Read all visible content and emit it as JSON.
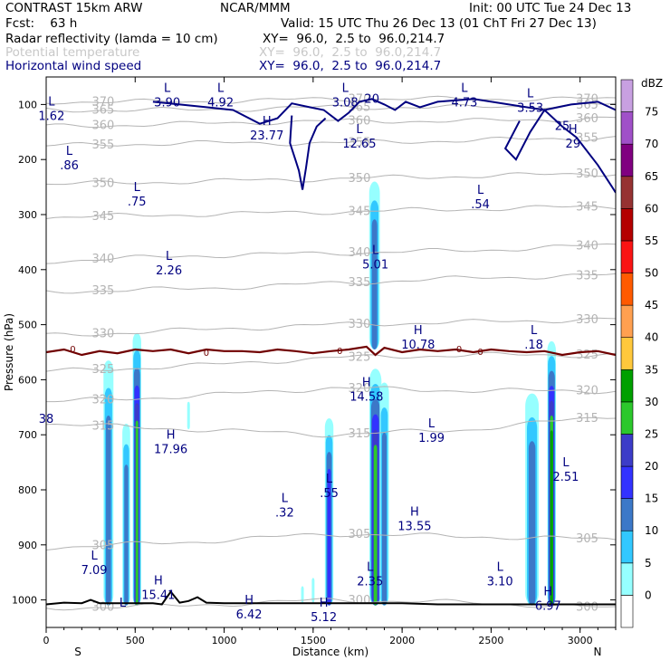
{
  "header": {
    "model": "CONTRAST 15km ARW",
    "org": "NCAR/MMM",
    "init": "Init: 00 UTC Tue 24 Dec 13",
    "fcst": "Fcst:    63 h",
    "valid": "Valid: 15 UTC Thu 26 Dec 13 (01 ChT Fri 27 Dec 13)",
    "line1_field": "Radar reflectivity (lamda = 10 cm)",
    "line1_xy": "XY=  96.0,  2.5 to  96.0,214.7",
    "line2_field": "Potential temperature",
    "line2_xy": "XY=  96.0,  2.5 to  96.0,214.7",
    "line3_field": "Horizontal wind speed",
    "line3_xy": "XY=  96.0,  2.5 to  96.0,214.7"
  },
  "colors": {
    "reflectivity": [
      "#96ffff",
      "#32c8ff",
      "#3c78c8",
      "#3232ff",
      "#3c3cc8",
      "#2cc82c",
      "#00a000",
      "#ffc83c",
      "#ffa050",
      "#ff5a00",
      "#fa1414",
      "#b40000",
      "#963232",
      "#800080",
      "#a050c8",
      "#c8a0e1"
    ],
    "theta": "#b4b4b4",
    "wind": "#000080",
    "freezing": "#700000",
    "terrain": "#000000"
  },
  "chart_data": {
    "type": "cross-section",
    "xlabel": "Distance (km)",
    "ylabel": "Pressure (hPa)",
    "xlim": [
      0,
      3200
    ],
    "ylim": [
      1050,
      50
    ],
    "x_ticks": [
      0,
      500,
      1000,
      1500,
      2000,
      2500,
      3000
    ],
    "y_ticks": [
      100,
      200,
      300,
      400,
      500,
      600,
      700,
      800,
      900,
      1000
    ],
    "x_end_labels": {
      "left": "S",
      "right": "N"
    },
    "colorbar": {
      "title": "dBZ",
      "levels": [
        0,
        5,
        10,
        15,
        20,
        25,
        30,
        35,
        40,
        45,
        50,
        55,
        60,
        65,
        70,
        75
      ]
    },
    "reflectivity_cores": [
      {
        "x": 350,
        "ptop": 565,
        "pbot": 1010,
        "hw": 28,
        "dbz": 18
      },
      {
        "x": 450,
        "ptop": 680,
        "pbot": 1010,
        "hw": 22,
        "dbz": 15
      },
      {
        "x": 510,
        "ptop": 515,
        "pbot": 1010,
        "hw": 24,
        "dbz": 32
      },
      {
        "x": 800,
        "ptop": 640,
        "pbot": 690,
        "hw": 6,
        "dbz": 5
      },
      {
        "x": 1440,
        "ptop": 975,
        "pbot": 1005,
        "hw": 6,
        "dbz": 5
      },
      {
        "x": 1500,
        "ptop": 960,
        "pbot": 1005,
        "hw": 6,
        "dbz": 5
      },
      {
        "x": 1590,
        "ptop": 670,
        "pbot": 1010,
        "hw": 24,
        "dbz": 22
      },
      {
        "x": 1845,
        "ptop": 240,
        "pbot": 545,
        "hw": 30,
        "dbz": 15
      },
      {
        "x": 1850,
        "ptop": 580,
        "pbot": 1010,
        "hw": 34,
        "dbz": 30
      },
      {
        "x": 1900,
        "ptop": 605,
        "pbot": 1010,
        "hw": 26,
        "dbz": 18
      },
      {
        "x": 2730,
        "ptop": 625,
        "pbot": 1010,
        "hw": 38,
        "dbz": 18
      },
      {
        "x": 2840,
        "ptop": 530,
        "pbot": 1010,
        "hw": 24,
        "dbz": 36
      }
    ],
    "theta_contours": [
      {
        "label": "300",
        "p": [
          1015,
          1010,
          1000,
          1005,
          1015
        ]
      },
      {
        "label": "305",
        "p": [
          905,
          895,
          880,
          885,
          890
        ]
      },
      {
        "label": "315",
        "p": [
          680,
          690,
          700,
          690,
          665
        ]
      },
      {
        "label": "320",
        "p": [
          640,
          630,
          615,
          620,
          620
        ]
      },
      {
        "label": "325",
        "p": [
          585,
          575,
          560,
          555,
          555
        ]
      },
      {
        "label": "330",
        "p": [
          520,
          510,
          500,
          495,
          490
        ]
      },
      {
        "label": "335",
        "p": [
          440,
          435,
          425,
          415,
          410
        ]
      },
      {
        "label": "340",
        "p": [
          385,
          375,
          370,
          365,
          355
        ]
      },
      {
        "label": "345",
        "p": [
          305,
          300,
          295,
          290,
          285
        ]
      },
      {
        "label": "350",
        "p": [
          245,
          240,
          235,
          230,
          225
        ]
      },
      {
        "label": "355",
        "p": [
          175,
          170,
          170,
          165,
          160
        ]
      },
      {
        "label": "360",
        "p": [
          140,
          135,
          130,
          130,
          125
        ]
      },
      {
        "label": "365",
        "p": [
          110,
          110,
          105,
          105,
          100
        ]
      },
      {
        "label": "370",
        "p": [
          95,
          95,
          90,
          90,
          90
        ]
      }
    ],
    "wind_contours": [
      {
        "label": "20",
        "pts": [
          [
            600,
            95
          ],
          [
            900,
            105
          ],
          [
            1050,
            110
          ],
          [
            1200,
            135
          ],
          [
            1300,
            125
          ],
          [
            1380,
            98
          ],
          [
            1480,
            105
          ],
          [
            1560,
            110
          ],
          [
            1640,
            130
          ],
          [
            1700,
            115
          ],
          [
            1760,
            95
          ],
          [
            1830,
            90
          ],
          [
            1900,
            100
          ],
          [
            1960,
            110
          ],
          [
            2020,
            95
          ],
          [
            2100,
            105
          ],
          [
            2200,
            95
          ],
          [
            2400,
            90
          ],
          [
            2800,
            110
          ],
          [
            2950,
            100
          ],
          [
            3100,
            95
          ],
          [
            3200,
            110
          ]
        ]
      },
      {
        "label": "25",
        "pts": [
          [
            2660,
            130
          ],
          [
            2580,
            180
          ],
          [
            2640,
            200
          ],
          [
            2720,
            150
          ],
          [
            2800,
            110
          ],
          [
            2900,
            140
          ],
          [
            2980,
            160
          ],
          [
            3100,
            210
          ],
          [
            3180,
            250
          ],
          [
            3200,
            260
          ]
        ]
      },
      {
        "label": "",
        "pts": [
          [
            1380,
            120
          ],
          [
            1370,
            170
          ],
          [
            1400,
            200
          ],
          [
            1420,
            220
          ],
          [
            1440,
            255
          ],
          [
            1460,
            215
          ],
          [
            1480,
            170
          ],
          [
            1520,
            140
          ],
          [
            1570,
            125
          ]
        ]
      }
    ],
    "freezing_level": {
      "label": "0",
      "x": [
        0,
        100,
        200,
        300,
        400,
        500,
        600,
        700,
        800,
        900,
        1000,
        1100,
        1200,
        1300,
        1400,
        1500,
        1600,
        1700,
        1800,
        1850,
        1900,
        2000,
        2100,
        2200,
        2300,
        2400,
        2500,
        2600,
        2700,
        2800,
        2900,
        3000,
        3100,
        3200
      ],
      "p": [
        550,
        545,
        555,
        548,
        552,
        545,
        548,
        545,
        552,
        545,
        548,
        548,
        550,
        545,
        548,
        552,
        548,
        545,
        540,
        555,
        542,
        550,
        545,
        548,
        545,
        550,
        545,
        548,
        550,
        548,
        555,
        550,
        548,
        555
      ]
    },
    "terrain": {
      "x": [
        0,
        100,
        200,
        250,
        300,
        400,
        500,
        600,
        650,
        700,
        750,
        800,
        850,
        900,
        1000,
        1200,
        1400,
        1600,
        1800,
        2000,
        2200,
        2400,
        2600,
        2800,
        3000,
        3200
      ],
      "p": [
        1008,
        1005,
        1006,
        1000,
        1006,
        1006,
        1006,
        1006,
        1008,
        985,
        1005,
        1002,
        995,
        1005,
        1006,
        1006,
        1006,
        1006,
        1006,
        1006,
        1008,
        1008,
        1008,
        1008,
        1008,
        1008
      ]
    },
    "extrema_labels": [
      {
        "t": "L",
        "v": "1.62"
      },
      {
        "t": "L",
        "v": "3.90"
      },
      {
        "t": "L",
        "v": "4.92"
      },
      {
        "t": "H",
        "v": "23.77"
      },
      {
        "t": "L",
        "v": "3.08"
      },
      {
        "t": "L",
        "v": "4.73"
      },
      {
        "t": "L",
        "v": "3.53"
      },
      {
        "t": "L",
        "v": "12.65"
      },
      {
        "t": "H",
        "v": "29"
      },
      {
        "t": "L",
        "v": ".86"
      },
      {
        "t": "L",
        "v": ".75"
      },
      {
        "t": "L",
        "v": ".54"
      },
      {
        "t": "L",
        "v": "2.26"
      },
      {
        "t": "L",
        "v": "5.01"
      },
      {
        "t": "H",
        "v": "10.78"
      },
      {
        "t": "L",
        "v": ".18"
      },
      {
        "t": "H",
        "v": "14.58"
      },
      {
        "t": "L",
        "v": "1.99"
      },
      {
        "t": "H",
        "v": "17.96"
      },
      {
        "t": "L",
        "v": "2.51"
      },
      {
        "t": "L",
        "v": ".55"
      },
      {
        "t": "L",
        "v": ".32"
      },
      {
        "t": "H",
        "v": "13.55"
      },
      {
        "t": "L",
        "v": "7.09"
      },
      {
        "t": "H",
        "v": "15.41"
      },
      {
        "t": "L",
        "v": "2.35"
      },
      {
        "t": "L",
        "v": "3.10"
      },
      {
        "t": "H",
        "v": "6.97"
      },
      {
        "t": "H",
        "v": "6.42"
      },
      {
        "t": "H",
        "v": "5.12"
      },
      {
        "t": "L",
        "v": ""
      },
      {
        "t": "",
        "v": "38"
      }
    ]
  }
}
